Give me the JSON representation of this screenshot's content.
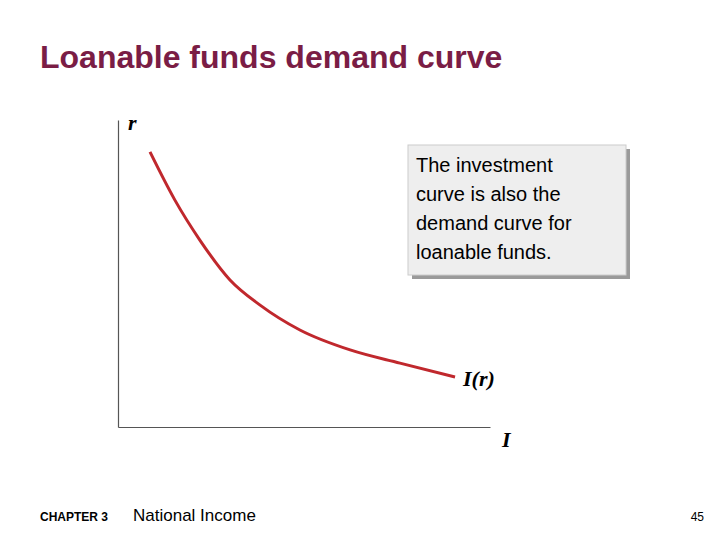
{
  "chart_data": {
    "type": "line",
    "title": "Loanable funds demand curve",
    "x_label": "I",
    "y_label": "r",
    "x": [
      8.6,
      15.3,
      22.0,
      30.1,
      38.2,
      48.9,
      62.4,
      75.8,
      90.6
    ],
    "series": [
      {
        "name": "I(r)",
        "color": "#c0282d",
        "line_style": "solid",
        "marker": "none",
        "values": [
          89.6,
          73.9,
          60.9,
          47.9,
          39.7,
          31.6,
          25.1,
          20.8,
          16.3
        ]
      }
    ],
    "xlim": [
      0,
      100
    ],
    "ylim": [
      0,
      100
    ],
    "tick_labels": false,
    "grid": false,
    "annotation": [
      "The investment",
      "curve is also the",
      "demand curve for",
      "loanable funds."
    ],
    "footer": {
      "chapter": "CHAPTER 3",
      "section": "National Income",
      "page": "45"
    }
  }
}
